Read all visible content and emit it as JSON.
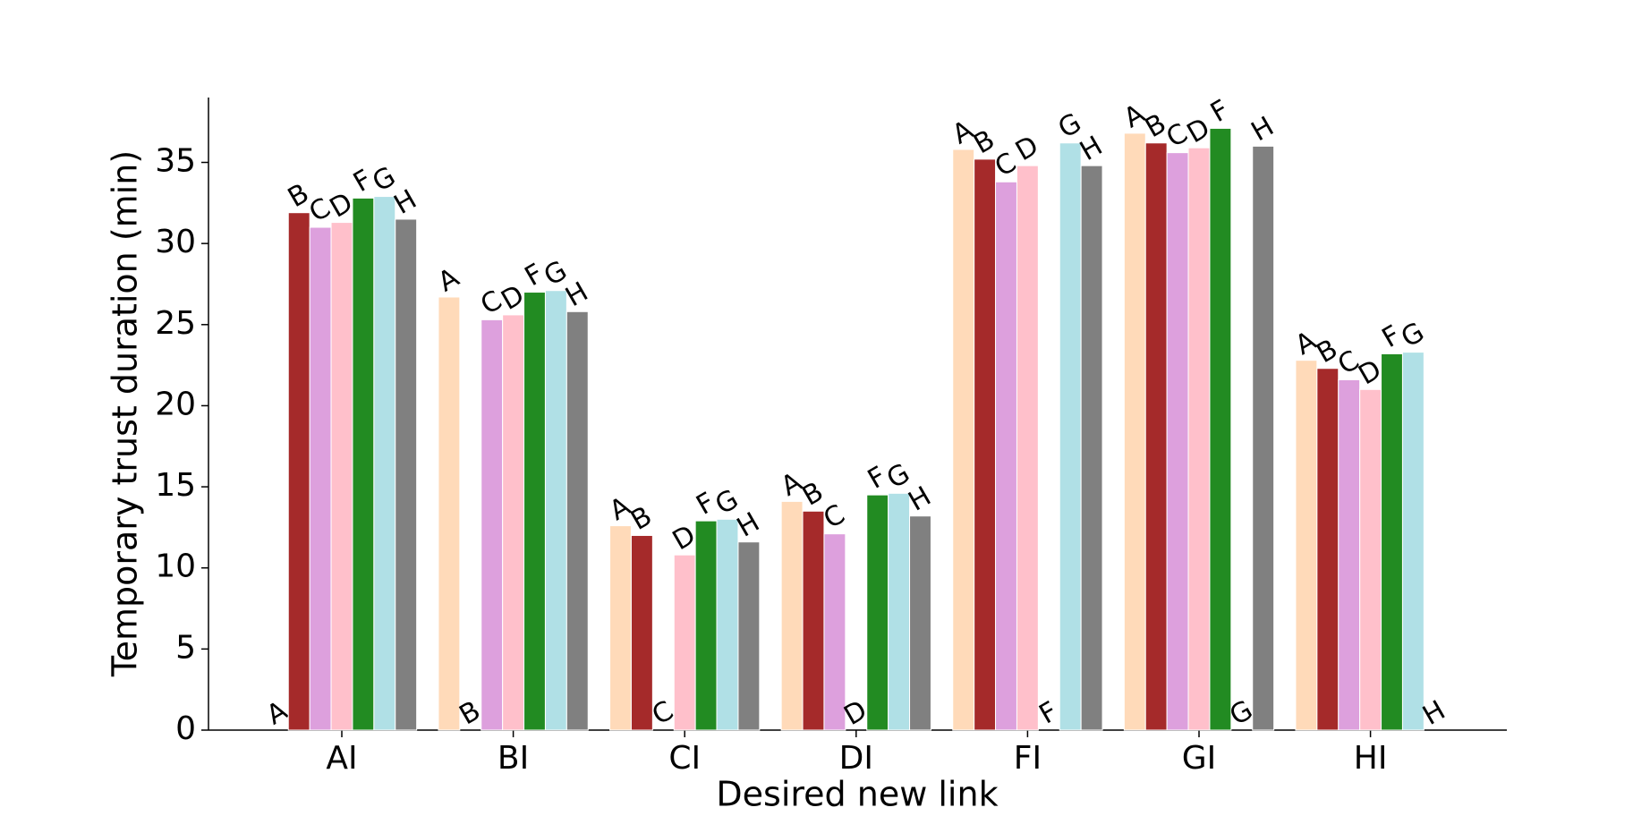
{
  "chart_data": {
    "type": "bar",
    "x_label": "Desired new link",
    "y_label": "Temporary trust duration (min)",
    "categories": [
      "AI",
      "BI",
      "CI",
      "DI",
      "FI",
      "GI",
      "HI"
    ],
    "series": [
      {
        "name": "A",
        "color": "#ffdab9",
        "values": [
          0,
          26.7,
          12.6,
          14.1,
          35.8,
          36.8,
          22.8
        ]
      },
      {
        "name": "B",
        "color": "#a52a2a",
        "values": [
          31.9,
          0,
          12.0,
          13.5,
          35.2,
          36.2,
          22.3
        ]
      },
      {
        "name": "C",
        "color": "#dda0dd",
        "values": [
          31.0,
          25.3,
          0,
          12.1,
          33.8,
          35.6,
          21.6
        ]
      },
      {
        "name": "D",
        "color": "#ffc0cb",
        "values": [
          31.3,
          25.6,
          10.8,
          0,
          34.8,
          35.9,
          21.0
        ]
      },
      {
        "name": "F",
        "color": "#228b22",
        "values": [
          32.8,
          27.0,
          12.9,
          14.5,
          0,
          37.1,
          23.2
        ]
      },
      {
        "name": "G",
        "color": "#b0e0e6",
        "values": [
          32.9,
          27.1,
          13.0,
          14.6,
          36.2,
          0,
          23.3
        ]
      },
      {
        "name": "H",
        "color": "#808080",
        "values": [
          31.5,
          25.8,
          11.6,
          13.2,
          34.8,
          36.0,
          0
        ]
      }
    ],
    "ylim": [
      0,
      39
    ],
    "yticks": [
      0,
      5,
      10,
      15,
      20,
      25,
      30,
      35
    ],
    "grid": false
  }
}
